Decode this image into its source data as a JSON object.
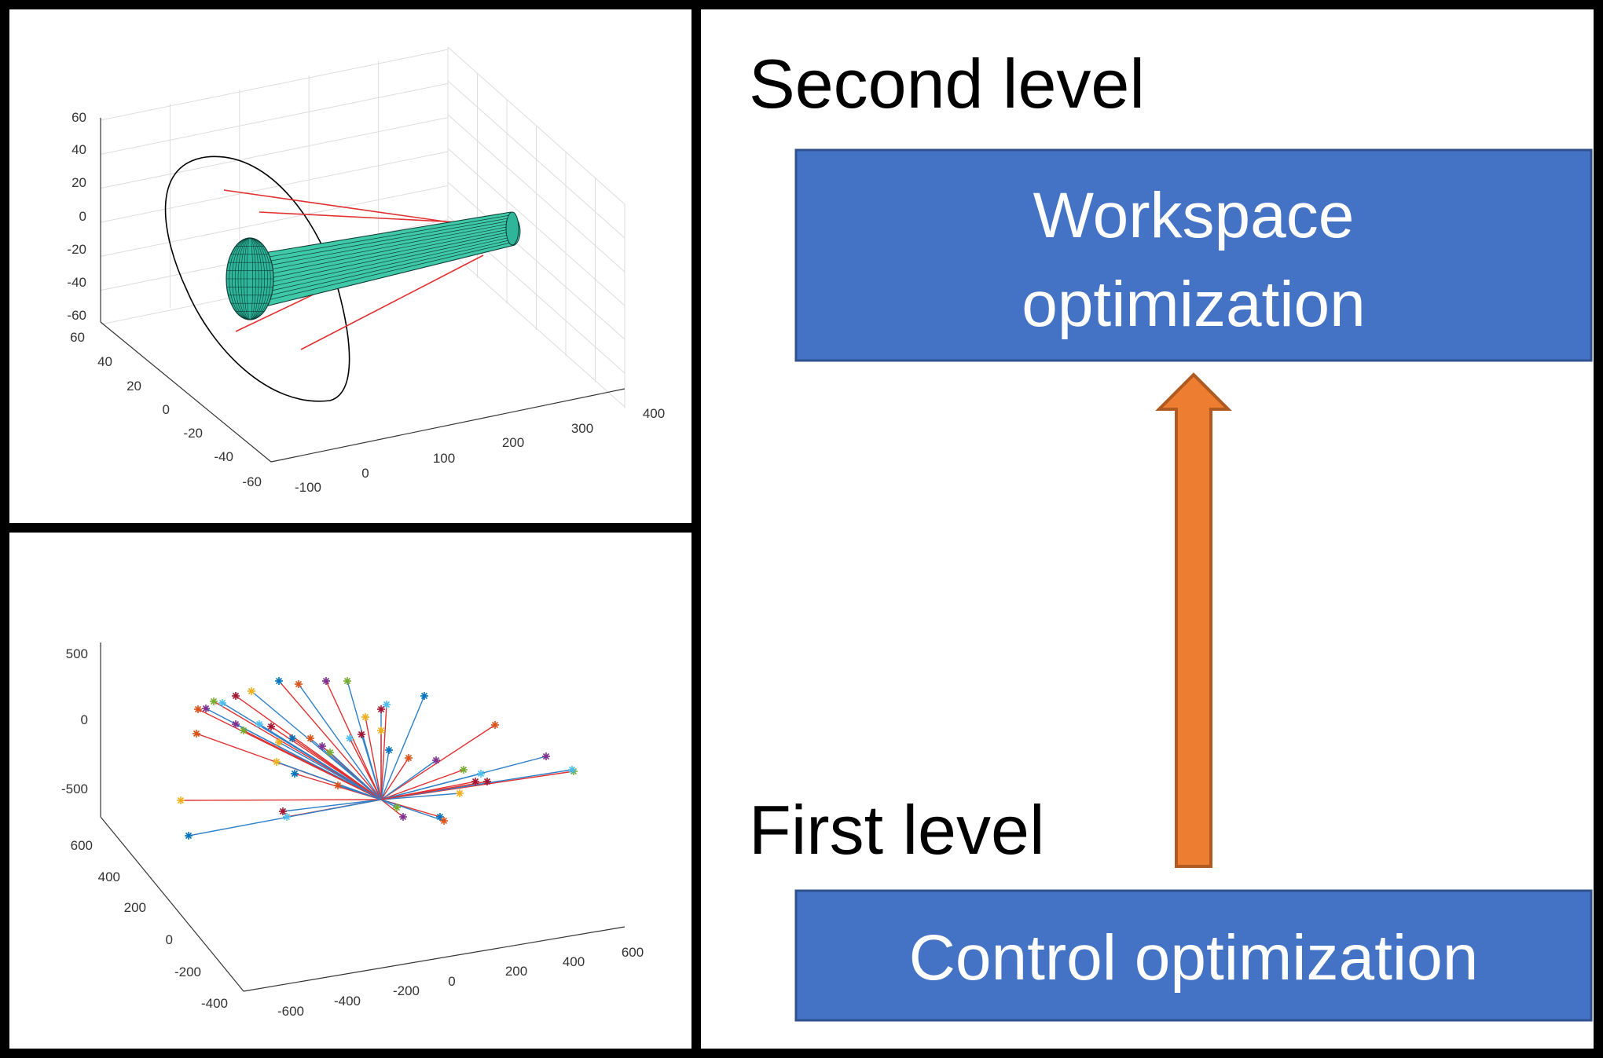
{
  "right_panel": {
    "second_level_label": "Second level",
    "first_level_label": "First level",
    "workspace_box": {
      "line1": "Workspace",
      "line2": "optimization",
      "fill": "#4472C4",
      "stroke": "#2F528F"
    },
    "control_box": {
      "text": "Control optimization",
      "fill": "#4472C4",
      "stroke": "#2F528F"
    },
    "arrow": {
      "direction": "up",
      "fill": "#ED7D31",
      "stroke": "#AE5A21"
    }
  },
  "top_plot": {
    "z_ticks": [
      "60",
      "40",
      "20",
      "0",
      "-20",
      "-40",
      "-60"
    ],
    "y_ticks": [
      "60",
      "40",
      "20",
      "0",
      "-20",
      "-40",
      "-60"
    ],
    "x_ticks": [
      "-100",
      "0",
      "100",
      "200",
      "300",
      "400"
    ],
    "cylinder_color": "#3FC9A8",
    "ellipsoid_color": "#2FB59A",
    "ring_color": "#000000",
    "line_color": "#E03030"
  },
  "bottom_plot": {
    "z_ticks": [
      "500",
      "0",
      "-500"
    ],
    "y_ticks": [
      "600",
      "400",
      "200",
      "0",
      "-200",
      "-400"
    ],
    "x_ticks": [
      "-600",
      "-400",
      "-200",
      "0",
      "200",
      "400",
      "600"
    ],
    "line_colors": [
      "#E03030",
      "#2E7FC8"
    ],
    "marker_colors": [
      "#D95319",
      "#7E2F8E",
      "#77AC30",
      "#4DBEEE",
      "#A2142F",
      "#EDB120",
      "#0072BD"
    ]
  },
  "colors": {
    "frame": "#000000",
    "background": "#FFFFFF"
  }
}
